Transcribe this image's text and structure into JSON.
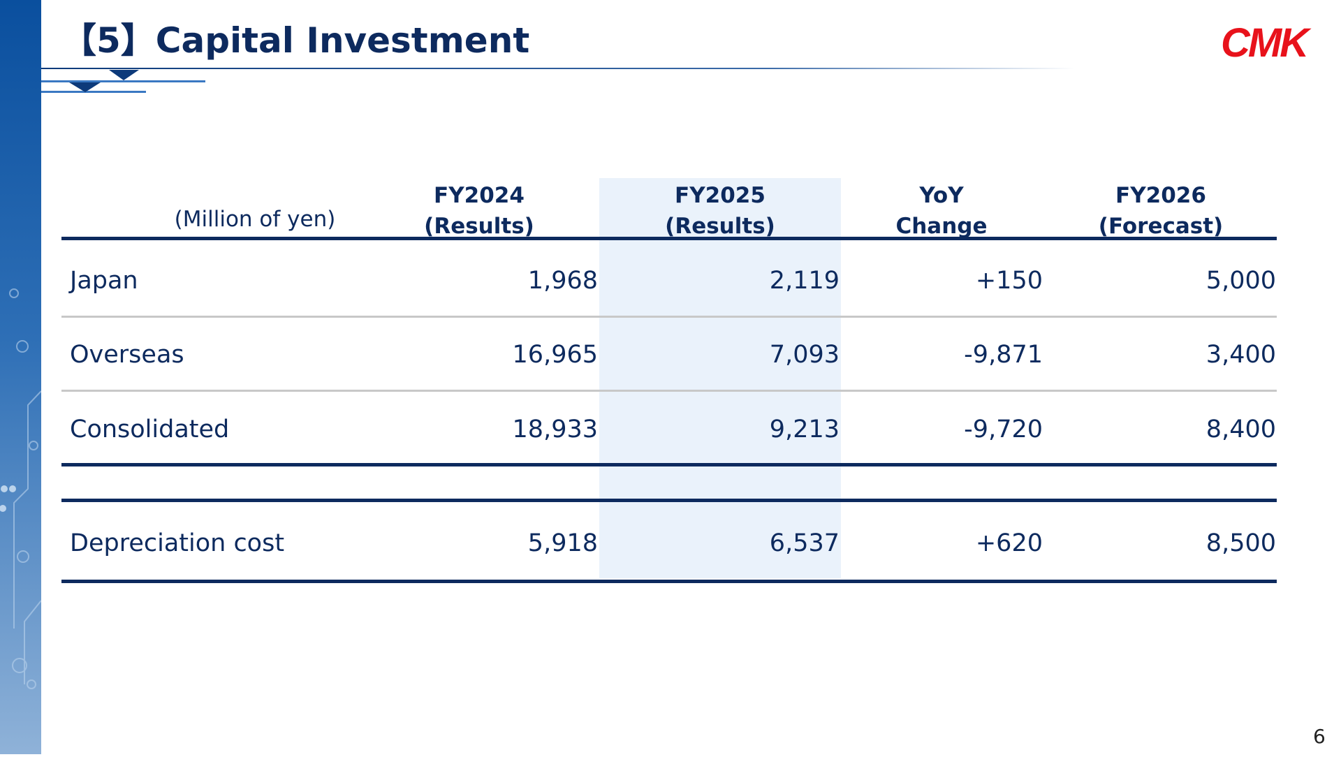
{
  "header": {
    "title": "【5】Capital Investment",
    "logo": "CMK"
  },
  "table": {
    "unit": "(Million of yen)",
    "columns": [
      {
        "name": "FY2024",
        "sub": "(Results)"
      },
      {
        "name": "FY2025",
        "sub": "(Results)"
      },
      {
        "name": "YoY",
        "sub": "Change"
      },
      {
        "name": "FY2026",
        "sub": "(Forecast)"
      }
    ],
    "rows": [
      [
        "Japan",
        "1,968",
        "2,119",
        "+150",
        "5,000"
      ],
      [
        "Overseas",
        "16,965",
        "7,093",
        "-9,871",
        "3,400"
      ],
      [
        "Consolidated",
        "18,933",
        "9,213",
        "-9,720",
        "8,400"
      ],
      [
        "Depreciation cost",
        "5,918",
        "6,537",
        "+620",
        "8,500"
      ]
    ]
  },
  "page_number": "6"
}
